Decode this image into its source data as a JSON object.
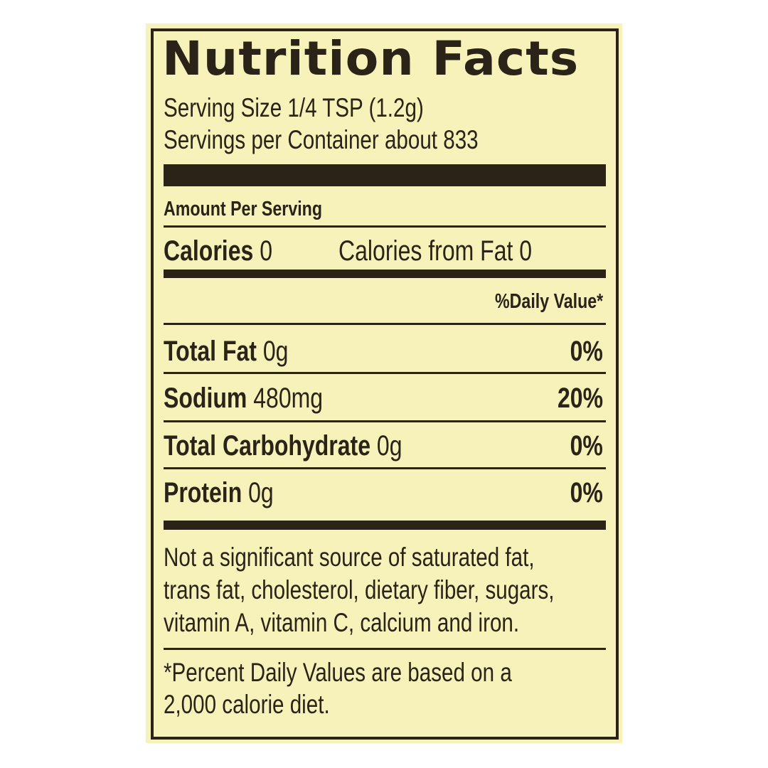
{
  "label": {
    "title": "Nutrition Facts",
    "serving_size": "Serving Size 1/4 TSP (1.2g)",
    "servings_per_container": "Servings per Container about 833",
    "amount_per_serving": "Amount Per Serving",
    "calories_label": "Calories",
    "calories_value": "0",
    "calories_from_fat": "Calories from Fat 0",
    "daily_value_header": "%Daily Value*",
    "nutrients": [
      {
        "name": "Total Fat",
        "amount": "0g",
        "dv": "0%"
      },
      {
        "name": "Sodium",
        "amount": "480mg",
        "dv": "20%"
      },
      {
        "name": "Total Carbohydrate",
        "amount": "0g",
        "dv": "0%"
      },
      {
        "name": "Protein",
        "amount": "0g",
        "dv": "0%"
      }
    ],
    "not_significant": [
      "Not a significant source of saturated fat,",
      "trans fat, cholesterol, dietary fiber, sugars,",
      "vitamin A, vitamin C, calcium and iron."
    ],
    "footnote": [
      "*Percent Daily Values are based on a",
      "2,000 calorie diet."
    ]
  },
  "colors": {
    "background": "#f6f2ba",
    "ink": "#2b2318"
  }
}
